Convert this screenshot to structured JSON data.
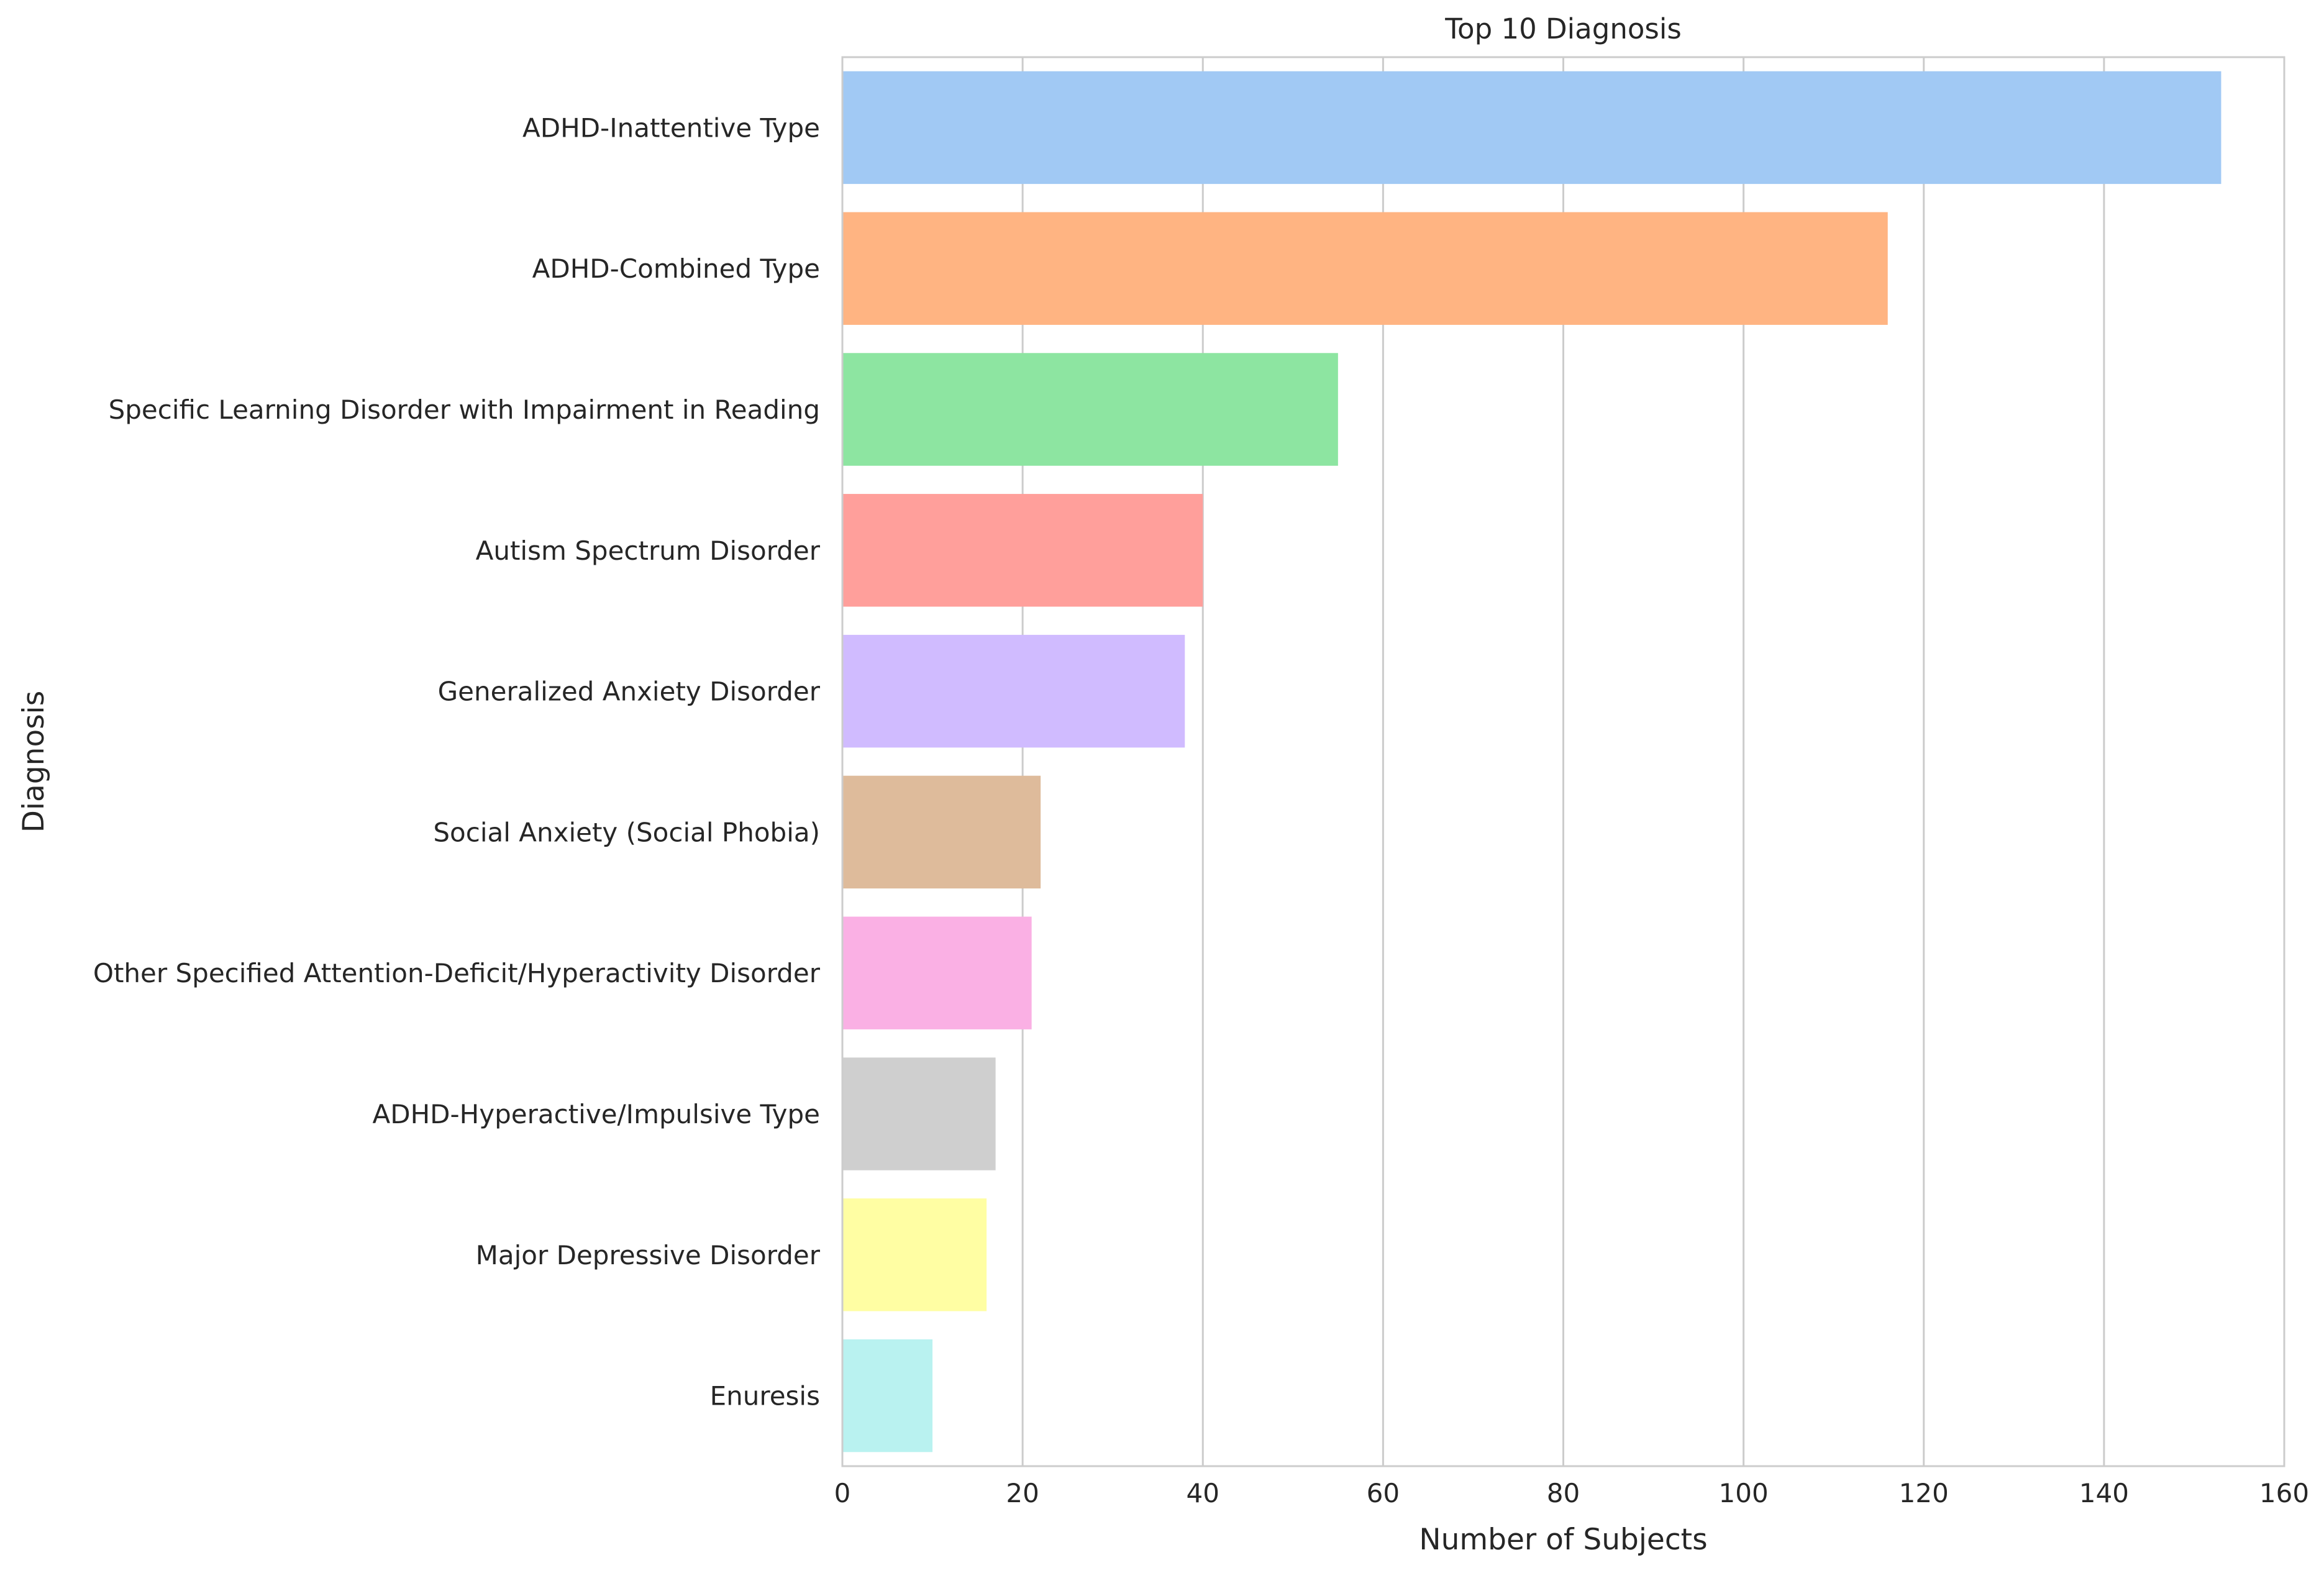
{
  "chart_data": {
    "type": "bar",
    "orientation": "horizontal",
    "title": "Top 10 Diagnosis",
    "xlabel": "Number of Subjects",
    "ylabel": "Diagnosis",
    "xlim": [
      0,
      160
    ],
    "xticks": [
      0,
      20,
      40,
      60,
      80,
      100,
      120,
      140,
      160
    ],
    "grid": true,
    "categories": [
      "ADHD-Inattentive Type",
      "ADHD-Combined Type",
      "Specific Learning Disorder with Impairment in Reading",
      "Autism Spectrum Disorder",
      "Generalized Anxiety Disorder",
      "Social Anxiety (Social Phobia)",
      "Other Specified Attention-Deficit/Hyperactivity Disorder",
      "ADHD-Hyperactive/Impulsive Type",
      "Major Depressive Disorder",
      "Enuresis"
    ],
    "values": [
      153,
      116,
      55,
      40,
      38,
      22,
      21,
      17,
      16,
      10
    ],
    "colors": [
      "#a1c9f4",
      "#ffb482",
      "#8de5a1",
      "#ff9f9b",
      "#d0bbff",
      "#debb9b",
      "#fab0e4",
      "#cfcfcf",
      "#fffea3",
      "#b9f2f0"
    ]
  }
}
